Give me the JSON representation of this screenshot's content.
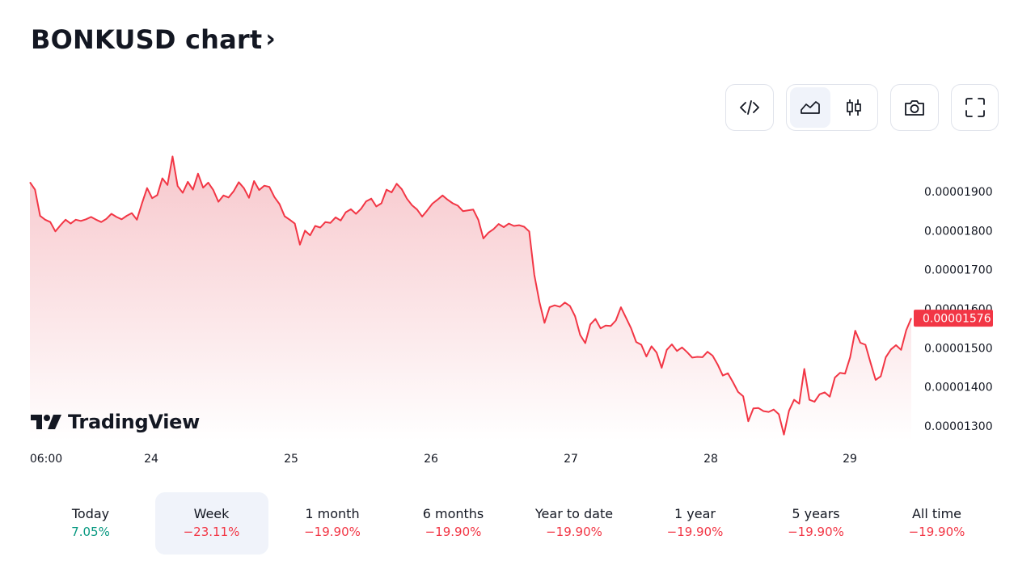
{
  "header": {
    "title": "BONKUSD chart",
    "chevron": "›"
  },
  "toolbar": {
    "embed_icon": "embed-code-icon",
    "area_icon": "area-chart-icon",
    "candles_icon": "candlestick-icon",
    "camera_icon": "camera-icon",
    "fullscreen_icon": "fullscreen-icon",
    "active_style": "area"
  },
  "branding": {
    "logo_text": "TradingView"
  },
  "colors": {
    "line": "#f23645",
    "area_top": "#f7c5ca",
    "area_bottom": "#ffffff",
    "badge": "#f23645",
    "positive": "#089981",
    "negative": "#f23645"
  },
  "chart_data": {
    "type": "area",
    "title": "",
    "xlabel": "",
    "ylabel": "",
    "x_ticks": [
      "06:00",
      "24",
      "25",
      "26",
      "27",
      "28",
      "29"
    ],
    "y_ticks": [
      "0.00001900",
      "0.00001800",
      "0.00001700",
      "0.00001600",
      "0.00001500",
      "0.00001400",
      "0.00001300"
    ],
    "ylim": [
      1.27e-05,
      2.01e-05
    ],
    "last_price": "0.00001576",
    "grid": false,
    "series": [
      {
        "values": [
          1.924e-05,
          1.905e-05,
          1.838e-05,
          1.828e-05,
          1.822e-05,
          1.798e-05,
          1.814e-05,
          1.828e-05,
          1.818e-05,
          1.828e-05,
          1.825e-05,
          1.829e-05,
          1.835e-05,
          1.828e-05,
          1.822e-05,
          1.83e-05,
          1.843e-05,
          1.835e-05,
          1.829e-05,
          1.838e-05,
          1.845e-05,
          1.828e-05,
          1.87e-05,
          1.909e-05,
          1.883e-05,
          1.891e-05,
          1.934e-05,
          1.917e-05,
          1.99e-05,
          1.914e-05,
          1.897e-05,
          1.925e-05,
          1.905e-05,
          1.946e-05,
          1.91e-05,
          1.923e-05,
          1.904e-05,
          1.874e-05,
          1.89e-05,
          1.885e-05,
          1.901e-05,
          1.924e-05,
          1.909e-05,
          1.884e-05,
          1.927e-05,
          1.904e-05,
          1.915e-05,
          1.912e-05,
          1.886e-05,
          1.868e-05,
          1.837e-05,
          1.828e-05,
          1.818e-05,
          1.764e-05,
          1.8e-05,
          1.788e-05,
          1.812e-05,
          1.808e-05,
          1.822e-05,
          1.82e-05,
          1.834e-05,
          1.826e-05,
          1.847e-05,
          1.855e-05,
          1.843e-05,
          1.856e-05,
          1.875e-05,
          1.882e-05,
          1.862e-05,
          1.87e-05,
          1.905e-05,
          1.898e-05,
          1.92e-05,
          1.906e-05,
          1.882e-05,
          1.865e-05,
          1.854e-05,
          1.836e-05,
          1.852e-05,
          1.869e-05,
          1.879e-05,
          1.89e-05,
          1.879e-05,
          1.87e-05,
          1.864e-05,
          1.85e-05,
          1.852e-05,
          1.854e-05,
          1.828e-05,
          1.78e-05,
          1.795e-05,
          1.804e-05,
          1.817e-05,
          1.809e-05,
          1.818e-05,
          1.812e-05,
          1.814e-05,
          1.81e-05,
          1.798e-05,
          1.687e-05,
          1.618e-05,
          1.564e-05,
          1.604e-05,
          1.609e-05,
          1.605e-05,
          1.616e-05,
          1.607e-05,
          1.581e-05,
          1.533e-05,
          1.512e-05,
          1.56e-05,
          1.574e-05,
          1.55e-05,
          1.557e-05,
          1.556e-05,
          1.57e-05,
          1.604e-05,
          1.577e-05,
          1.55e-05,
          1.515e-05,
          1.508e-05,
          1.478e-05,
          1.504e-05,
          1.488e-05,
          1.449e-05,
          1.495e-05,
          1.509e-05,
          1.492e-05,
          1.501e-05,
          1.489e-05,
          1.475e-05,
          1.477e-05,
          1.476e-05,
          1.49e-05,
          1.48e-05,
          1.457e-05,
          1.429e-05,
          1.435e-05,
          1.412e-05,
          1.387e-05,
          1.376e-05,
          1.312e-05,
          1.345e-05,
          1.346e-05,
          1.338e-05,
          1.336e-05,
          1.342e-05,
          1.33e-05,
          1.278e-05,
          1.339e-05,
          1.367e-05,
          1.357e-05,
          1.446e-05,
          1.367e-05,
          1.362e-05,
          1.381e-05,
          1.386e-05,
          1.375e-05,
          1.424e-05,
          1.436e-05,
          1.434e-05,
          1.476e-05,
          1.544e-05,
          1.513e-05,
          1.508e-05,
          1.462e-05,
          1.418e-05,
          1.427e-05,
          1.476e-05,
          1.496e-05,
          1.507e-05,
          1.495e-05,
          1.545e-05,
          1.576e-05
        ]
      }
    ]
  },
  "periods": [
    {
      "label": "Today",
      "value": "7.05%",
      "sign": "pos",
      "active": false
    },
    {
      "label": "Week",
      "value": "−23.11%",
      "sign": "neg",
      "active": true
    },
    {
      "label": "1 month",
      "value": "−19.90%",
      "sign": "neg",
      "active": false
    },
    {
      "label": "6 months",
      "value": "−19.90%",
      "sign": "neg",
      "active": false
    },
    {
      "label": "Year to date",
      "value": "−19.90%",
      "sign": "neg",
      "active": false
    },
    {
      "label": "1 year",
      "value": "−19.90%",
      "sign": "neg",
      "active": false
    },
    {
      "label": "5 years",
      "value": "−19.90%",
      "sign": "neg",
      "active": false
    },
    {
      "label": "All time",
      "value": "−19.90%",
      "sign": "neg",
      "active": false
    }
  ]
}
